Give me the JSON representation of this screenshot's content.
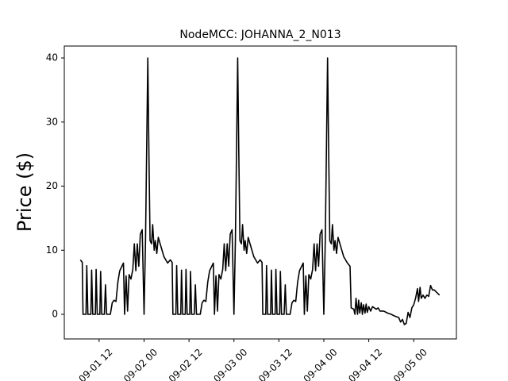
{
  "chart_data": {
    "type": "line",
    "title": "NodeMCC: JOHANNA_2_N013",
    "y_label": "Price ($)",
    "x": [
      7,
      7.5,
      7.7,
      8.5,
      8.7,
      9,
      9.8,
      10,
      10.3,
      11,
      11.2,
      11.5,
      12.2,
      12.4,
      12.7,
      13.4,
      13.7,
      14,
      15,
      15.5,
      16,
      16.5,
      17,
      17.5,
      18,
      18.5,
      18.8,
      19.2,
      19.6,
      20,
      20.5,
      21,
      21.4,
      21.8,
      22.2,
      22.6,
      23,
      23.5,
      24,
      24.4,
      25,
      25.3,
      25.6,
      26,
      26.3,
      26.7,
      27,
      27.4,
      27.8,
      28.3,
      28.8,
      29.3,
      29.8,
      30.3,
      31,
      31.5,
      31.7,
      32.5,
      32.7,
      33,
      33.8,
      34,
      34.3,
      35,
      35.2,
      35.5,
      36.2,
      36.4,
      36.7,
      37.4,
      37.7,
      38,
      39,
      39.5,
      40,
      40.5,
      41,
      41.5,
      42,
      42.5,
      42.8,
      43.2,
      43.6,
      44,
      44.5,
      45,
      45.4,
      45.8,
      46.2,
      46.6,
      47,
      47.5,
      48,
      48.4,
      49,
      49.3,
      49.6,
      50,
      50.3,
      50.7,
      51,
      51.4,
      51.8,
      52.3,
      52.8,
      53.3,
      53.8,
      54.3,
      55,
      55.5,
      55.7,
      56.5,
      56.7,
      57,
      57.8,
      58,
      58.3,
      59,
      59.2,
      59.5,
      60.2,
      60.4,
      60.7,
      61.4,
      61.7,
      62,
      63,
      63.5,
      64,
      64.5,
      65,
      65.5,
      66,
      66.5,
      66.8,
      67.2,
      67.6,
      68,
      68.5,
      69,
      69.4,
      69.8,
      70.2,
      70.6,
      71,
      71.5,
      72,
      72.4,
      73,
      73.3,
      73.6,
      74,
      74.3,
      74.7,
      75,
      75.4,
      75.8,
      76.3,
      76.8,
      77.3,
      77.8,
      78.3,
      79,
      79.3,
      80,
      80.3,
      80.6,
      81,
      81.3,
      81.6,
      82,
      82.3,
      82.6,
      83,
      83.3,
      83.6,
      84,
      84.5,
      85,
      86,
      86.5,
      87,
      88,
      89,
      90,
      91,
      92,
      92.5,
      93,
      93.5,
      94,
      94.5,
      95,
      95.5,
      96,
      96.5,
      97,
      97.3,
      97.7,
      98,
      98.5,
      99,
      99.5,
      100,
      100.5,
      101,
      101.5,
      102,
      102.9
    ],
    "values": [
      8.5,
      8.1,
      0,
      0,
      7.6,
      0,
      0,
      6.9,
      0,
      0,
      7,
      0,
      0,
      6.7,
      0,
      0,
      4.6,
      0,
      0,
      1.8,
      2.2,
      2,
      5,
      6.8,
      7.4,
      8,
      0,
      6,
      0.5,
      6.2,
      5.5,
      7,
      11,
      6.8,
      11,
      7.5,
      12.5,
      13.2,
      0,
      12,
      40,
      25,
      11.5,
      11,
      14,
      10,
      11.5,
      9.5,
      12,
      11,
      10,
      9,
      8.5,
      8,
      8.5,
      8.1,
      0,
      0,
      7.6,
      0,
      0,
      6.9,
      0,
      0,
      7,
      0,
      0,
      6.7,
      0,
      0,
      4.6,
      0,
      0,
      1.8,
      2.2,
      2,
      5,
      6.8,
      7.4,
      8,
      0,
      6,
      0.5,
      6.2,
      5.5,
      7,
      11,
      6.8,
      11,
      7.5,
      12.5,
      13.2,
      0,
      12,
      40,
      25,
      11.5,
      11,
      14,
      10,
      11.5,
      9.5,
      12,
      11,
      10,
      9,
      8.5,
      8,
      8.5,
      8.1,
      0,
      0,
      7.6,
      0,
      0,
      6.9,
      0,
      0,
      7,
      0,
      0,
      6.7,
      0,
      0,
      4.6,
      0,
      0,
      1.8,
      2.2,
      2,
      5,
      6.8,
      7.4,
      8,
      0,
      6,
      0.5,
      6.2,
      5.5,
      7,
      11,
      6.8,
      11,
      7.5,
      12.5,
      13.2,
      0,
      12,
      40,
      25,
      11.5,
      11,
      14,
      10,
      11.5,
      9.5,
      12,
      11,
      10,
      9,
      8.5,
      8,
      7.5,
      1,
      0.8,
      0,
      2.5,
      0,
      2.2,
      0.2,
      1.8,
      0,
      1.5,
      0.2,
      1.6,
      0.3,
      1.2,
      0.5,
      1.2,
      0.8,
      1,
      0.5,
      0.5,
      0.2,
      0,
      -0.3,
      -0.5,
      -1.2,
      -0.8,
      -1.6,
      -1.4,
      0.3,
      -0.5,
      1,
      1.5,
      2.5,
      4,
      2,
      4.2,
      2.5,
      3,
      2.5,
      3,
      2.8,
      4.5,
      3.8,
      3.8,
      3.5,
      3
    ],
    "color": "#000000",
    "xlim": [
      2.7,
      107.4
    ],
    "xticks": [
      {
        "value": 12,
        "label": "09-01 12"
      },
      {
        "value": 24,
        "label": "09-02 00"
      },
      {
        "value": 36,
        "label": "09-02 12"
      },
      {
        "value": 48,
        "label": "09-03 00"
      },
      {
        "value": 60,
        "label": "09-03 12"
      },
      {
        "value": 72,
        "label": "09-04 00"
      },
      {
        "value": 84,
        "label": "09-04 12"
      },
      {
        "value": 96,
        "label": "09-05 00"
      }
    ],
    "ylim": [
      -3.84,
      41.86
    ],
    "yticks": [
      0,
      10,
      20,
      30,
      40
    ]
  }
}
